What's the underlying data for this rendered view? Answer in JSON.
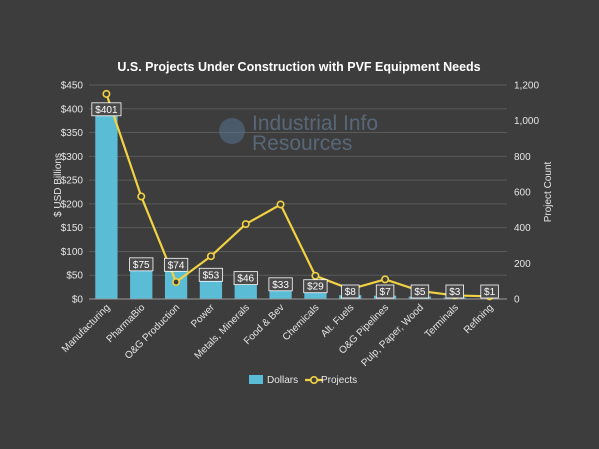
{
  "chart_data": {
    "type": "bar+line",
    "title": "U.S. Projects Under Construction with PVF Equipment Needs",
    "categories": [
      "Manufacturing",
      "PharmaBio",
      "O&G Production",
      "Power",
      "Metals, Minerals",
      "Food & Bev",
      "Chemicals",
      "Alt. Fuels",
      "O&G Pipelines",
      "Pulp, Paper, Wood",
      "Terminals",
      "Refining"
    ],
    "series": [
      {
        "name": "Dollars",
        "type": "bar",
        "axis": "left",
        "values": [
          401,
          75,
          74,
          53,
          46,
          33,
          29,
          8,
          7,
          5,
          3,
          1
        ],
        "labels": [
          "$401",
          "$75",
          "$74",
          "$53",
          "$46",
          "$33",
          "$29",
          "$8",
          "$7",
          "$5",
          "$3",
          "$1"
        ]
      },
      {
        "name": "Projects",
        "type": "line",
        "axis": "right",
        "values": [
          1150,
          575,
          95,
          240,
          420,
          530,
          130,
          55,
          110,
          45,
          20,
          15
        ]
      }
    ],
    "ylabel": "$ USD Billions",
    "y2label": "Project Count",
    "ylim": [
      0,
      450
    ],
    "y2lim": [
      0,
      1200
    ],
    "yticks": [
      "$0",
      "$50",
      "$100",
      "$150",
      "$200",
      "$250",
      "$300",
      "$350",
      "$400",
      "$450"
    ],
    "y2ticks": [
      "0",
      "200",
      "400",
      "600",
      "800",
      "1,000",
      "1,200"
    ],
    "grid": true,
    "legend_position": "bottom",
    "colors": {
      "bars": "#5bbcd6",
      "line": "#f1d243",
      "background": "#3d3d3d"
    }
  },
  "watermark": {
    "line1": "Industrial Info",
    "line2": "Resources"
  }
}
